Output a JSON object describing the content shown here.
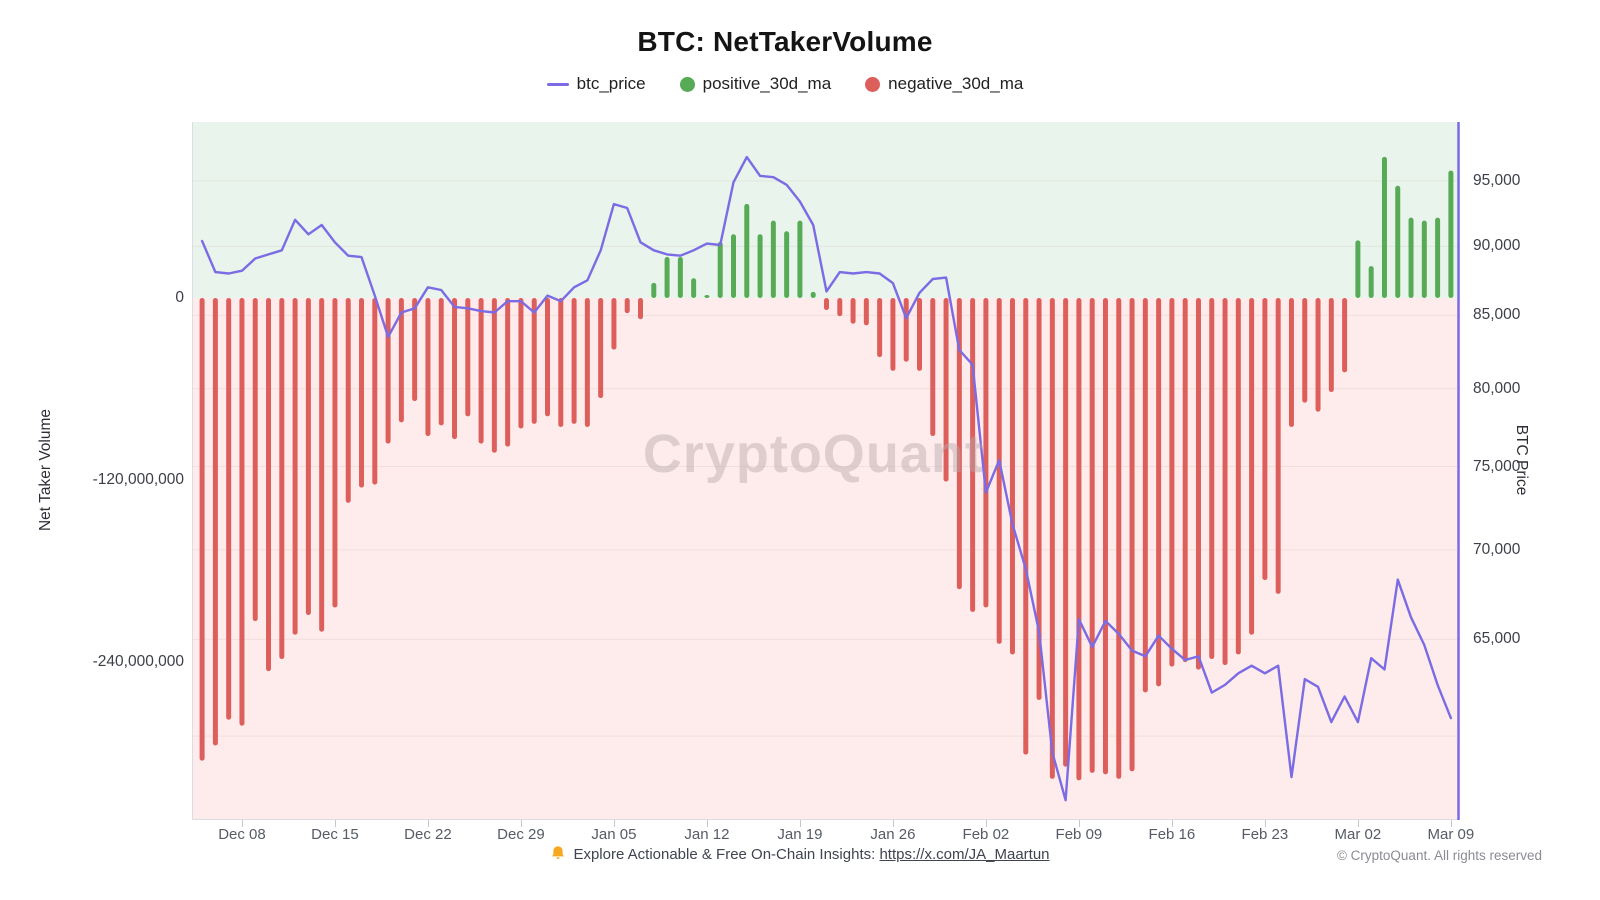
{
  "header": {
    "title": "BTC: NetTakerVolume"
  },
  "legend": {
    "items": [
      {
        "label": "btc_price",
        "color": "#7b6be4",
        "swatch": "line"
      },
      {
        "label": "positive_30d_ma",
        "color": "#57aa56",
        "swatch": "circle"
      },
      {
        "label": "negative_30d_ma",
        "color": "#dd5f5c",
        "swatch": "circle"
      }
    ]
  },
  "watermark": "CryptoQuant",
  "footer": {
    "icon": "bell-icon",
    "text": "Explore Actionable & Free On-Chain Insights:",
    "link": "https://x.com/JA_Maartun",
    "copyright": "© CryptoQuant. All rights reserved"
  },
  "axes": {
    "left": {
      "title": "Net Taker Volume",
      "ticks": [
        "0",
        "-120,000,000",
        "-240,000,000"
      ],
      "tick_values_millions": [
        0,
        -120,
        -240
      ]
    },
    "right": {
      "title": "BTC Price",
      "scale": "log",
      "ticks": [
        "95,000",
        "90,000",
        "85,000",
        "80,000",
        "75,000",
        "70,000",
        "65,000"
      ],
      "tick_values": [
        95000,
        90000,
        85000,
        80000,
        75000,
        70000,
        65000
      ],
      "gridline_values": [
        95000,
        90000,
        85000,
        80000,
        75000,
        70000,
        65000,
        60000
      ]
    },
    "x": {
      "ticks": [
        "Dec 08",
        "Dec 15",
        "Dec 22",
        "Dec 29",
        "Jan 05",
        "Jan 12",
        "Jan 19",
        "Jan 26",
        "Feb 02",
        "Feb 09",
        "Feb 16",
        "Feb 23",
        "Mar 02",
        "Mar 09"
      ]
    }
  },
  "chart_data": {
    "type": "bar+line",
    "title": "BTC: NetTakerVolume",
    "background_positive": "#e9f4ec",
    "background_negative": "#fdeceb",
    "left_axis_range_millions": [
      -344,
      116
    ],
    "right_axis_range": [
      56000,
      99800
    ],
    "legend_position": "top",
    "x": [
      "Dec 05",
      "Dec 06",
      "Dec 07",
      "Dec 08",
      "Dec 09",
      "Dec 10",
      "Dec 11",
      "Dec 12",
      "Dec 13",
      "Dec 14",
      "Dec 15",
      "Dec 16",
      "Dec 17",
      "Dec 18",
      "Dec 19",
      "Dec 20",
      "Dec 21",
      "Dec 22",
      "Dec 23",
      "Dec 24",
      "Dec 25",
      "Dec 26",
      "Dec 27",
      "Dec 28",
      "Dec 29",
      "Dec 30",
      "Dec 31",
      "Jan 01",
      "Jan 02",
      "Jan 03",
      "Jan 04",
      "Jan 05",
      "Jan 06",
      "Jan 07",
      "Jan 08",
      "Jan 09",
      "Jan 10",
      "Jan 11",
      "Jan 12",
      "Jan 13",
      "Jan 14",
      "Jan 15",
      "Jan 16",
      "Jan 17",
      "Jan 18",
      "Jan 19",
      "Jan 20",
      "Jan 21",
      "Jan 22",
      "Jan 23",
      "Jan 24",
      "Jan 25",
      "Jan 26",
      "Jan 27",
      "Jan 28",
      "Jan 29",
      "Jan 30",
      "Jan 31",
      "Feb 01",
      "Feb 02",
      "Feb 03",
      "Feb 04",
      "Feb 05",
      "Feb 06",
      "Feb 07",
      "Feb 08",
      "Feb 09",
      "Feb 10",
      "Feb 11",
      "Feb 12",
      "Feb 13",
      "Feb 14",
      "Feb 15",
      "Feb 16",
      "Feb 17",
      "Feb 18",
      "Feb 19",
      "Feb 20",
      "Feb 21",
      "Feb 22",
      "Feb 23",
      "Feb 24",
      "Feb 25",
      "Feb 26",
      "Feb 27",
      "Feb 28",
      "Mar 01",
      "Mar 02",
      "Mar 03",
      "Mar 04",
      "Mar 05",
      "Mar 06",
      "Mar 07",
      "Mar 08",
      "Mar 09"
    ],
    "series": [
      {
        "name": "net_taker_volume_30d_ma",
        "type": "bar",
        "axis": "left",
        "unit": "USD millions",
        "positive_color": "#57aa56",
        "negative_color": "#dd5f5c",
        "values_millions": [
          -305,
          -295,
          -278,
          -282,
          -213,
          -246,
          -238,
          -222,
          -209,
          -220,
          -204,
          -135,
          -125,
          -123,
          -96,
          -82,
          -68,
          -91,
          -84,
          -93,
          -78,
          -96,
          -102,
          -98,
          -86,
          -83,
          -78,
          -85,
          -83,
          -85,
          -66,
          -34,
          -10,
          -14,
          10,
          27,
          27,
          13,
          2,
          37,
          42,
          62,
          42,
          51,
          44,
          51,
          4,
          -8,
          -12,
          -17,
          -18,
          -39,
          -48,
          -42,
          -48,
          -91,
          -121,
          -192,
          -207,
          -204,
          -228,
          -235,
          -301,
          -265,
          -317,
          -309,
          -318,
          -313,
          -314,
          -317,
          -312,
          -260,
          -256,
          -243,
          -240,
          -245,
          -238,
          -242,
          -235,
          -222,
          -186,
          -195,
          -85,
          -69,
          -75,
          -62,
          -49,
          38,
          21,
          93,
          74,
          53,
          51,
          53,
          84
        ]
      },
      {
        "name": "btc_price",
        "type": "line",
        "axis": "right",
        "unit": "USD",
        "color": "#7b6be4",
        "values": [
          90400,
          88100,
          88000,
          88200,
          89100,
          89400,
          89700,
          92000,
          90900,
          91600,
          90300,
          89300,
          89200,
          86400,
          83500,
          85200,
          85500,
          87000,
          86800,
          85600,
          85500,
          85300,
          85200,
          86000,
          86000,
          85200,
          86400,
          86000,
          87000,
          87500,
          89700,
          93200,
          92900,
          90300,
          89700,
          89400,
          89300,
          89700,
          90200,
          90100,
          94900,
          96900,
          95400,
          95300,
          94700,
          93400,
          91600,
          86700,
          88100,
          88000,
          88100,
          88000,
          87300,
          84800,
          86600,
          87600,
          87700,
          82600,
          81600,
          73400,
          75400,
          71500,
          68900,
          65400,
          59200,
          56900,
          66100,
          64600,
          66000,
          65300,
          64400,
          64100,
          65200,
          64500,
          63900,
          64100,
          62200,
          62600,
          63200,
          63600,
          63200,
          63600,
          58000,
          62900,
          62500,
          60700,
          62000,
          60700,
          64000,
          63400,
          68300,
          66200,
          64700,
          62600,
          60900
        ]
      }
    ]
  }
}
